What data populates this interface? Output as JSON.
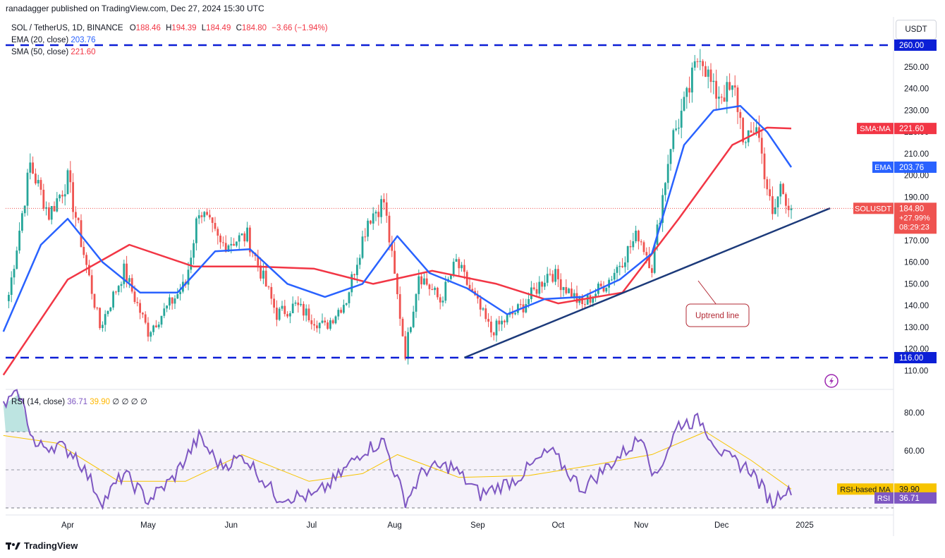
{
  "header": {
    "published": "ranadagger published on TradingView.com, Dec 27, 2024 15:30 UTC",
    "currency_button": "USDT"
  },
  "legend": {
    "symbol": "SOL / TetherUS, 1D, BINANCE",
    "ohlc": {
      "o_label": "O",
      "o": "188.46",
      "h_label": "H",
      "h": "194.39",
      "l_label": "L",
      "l": "184.49",
      "c_label": "C",
      "c": "184.80",
      "chg": "−3.66 (−1.94%)"
    },
    "ema_label": "EMA (20, close)",
    "ema_value": "203.76",
    "sma_label": "SMA (50, close)",
    "sma_value": "221.60"
  },
  "rsi_legend": {
    "label": "RSI (14, close)",
    "rsi": "36.71",
    "ma": "39.90",
    "extras": "∅ ∅ ∅ ∅"
  },
  "price_axis": {
    "ticks": [
      "250.00",
      "240.00",
      "230.00",
      "220.00",
      "210.00",
      "200.00",
      "190.00",
      "180.00",
      "170.00",
      "160.00",
      "150.00",
      "140.00",
      "130.00",
      "120.00",
      "110.00"
    ],
    "tag_260": "260.00",
    "tag_116": "116.00",
    "sma_tag": {
      "name": "SMA:MA",
      "value": "221.60"
    },
    "ema_tag": {
      "name": "EMA",
      "value": "203.76"
    },
    "last_tag": {
      "name": "SOLUSDT",
      "value": "184.80",
      "change": "+27.99%",
      "countdown": "08:29:23"
    }
  },
  "rsi_axis": {
    "ticks": [
      "80.00",
      "60.00"
    ],
    "ma_tag": {
      "name": "RSI-based MA",
      "value": "39.90"
    },
    "rsi_tag": {
      "name": "RSI",
      "value": "36.71"
    }
  },
  "time_axis": [
    "Apr",
    "May",
    "Jun",
    "Jul",
    "Aug",
    "Sep",
    "Oct",
    "Nov",
    "Dec",
    "2025"
  ],
  "annotation": {
    "uptrend": "Uptrend line"
  },
  "footer": {
    "brand": "TradingView"
  },
  "colors": {
    "up": "#26a69a",
    "down": "#ef5350",
    "ema": "#2962ff",
    "sma": "#f23645",
    "level": "#0c1fd6",
    "trend": "#1c3a7a",
    "rsi": "#7e57c2",
    "rsi_ma": "#f7c400"
  },
  "chart_data": {
    "type": "candlestick",
    "title": "SOL / TetherUS, 1D, BINANCE",
    "y_range": [
      105,
      265
    ],
    "rsi_range": [
      28,
      92
    ],
    "horizontal_levels": [
      260,
      116
    ],
    "trendline": {
      "from": {
        "date": "2024-08-27",
        "price": 116
      },
      "to": {
        "date": "2024-12-27",
        "price": 179
      }
    },
    "key_points": [
      {
        "date": "2024-03-10",
        "price": 145
      },
      {
        "date": "2024-03-18",
        "price": 205
      },
      {
        "date": "2024-03-25",
        "price": 182
      },
      {
        "date": "2024-04-01",
        "price": 198
      },
      {
        "date": "2024-04-13",
        "price": 130
      },
      {
        "date": "2024-04-22",
        "price": 156
      },
      {
        "date": "2024-05-01",
        "price": 128
      },
      {
        "date": "2024-05-15",
        "price": 150
      },
      {
        "date": "2024-05-20",
        "price": 185
      },
      {
        "date": "2024-05-28",
        "price": 168
      },
      {
        "date": "2024-06-07",
        "price": 172
      },
      {
        "date": "2024-06-18",
        "price": 136
      },
      {
        "date": "2024-06-25",
        "price": 140
      },
      {
        "date": "2024-07-06",
        "price": 130
      },
      {
        "date": "2024-07-14",
        "price": 143
      },
      {
        "date": "2024-07-22",
        "price": 180
      },
      {
        "date": "2024-07-28",
        "price": 188
      },
      {
        "date": "2024-08-05",
        "price": 118
      },
      {
        "date": "2024-08-10",
        "price": 155
      },
      {
        "date": "2024-08-18",
        "price": 142
      },
      {
        "date": "2024-08-24",
        "price": 160
      },
      {
        "date": "2024-09-06",
        "price": 128
      },
      {
        "date": "2024-09-18",
        "price": 140
      },
      {
        "date": "2024-09-28",
        "price": 156
      },
      {
        "date": "2024-10-10",
        "price": 140
      },
      {
        "date": "2024-10-20",
        "price": 152
      },
      {
        "date": "2024-10-31",
        "price": 173
      },
      {
        "date": "2024-11-05",
        "price": 158
      },
      {
        "date": "2024-11-12",
        "price": 215
      },
      {
        "date": "2024-11-18",
        "price": 235
      },
      {
        "date": "2024-11-23",
        "price": 258
      },
      {
        "date": "2024-11-28",
        "price": 238
      },
      {
        "date": "2024-12-06",
        "price": 238
      },
      {
        "date": "2024-12-10",
        "price": 213
      },
      {
        "date": "2024-12-14",
        "price": 224
      },
      {
        "date": "2024-12-20",
        "price": 180
      },
      {
        "date": "2024-12-23",
        "price": 195
      },
      {
        "date": "2024-12-27",
        "price": 184.8
      }
    ],
    "ema20": [
      {
        "date": "2024-03-08",
        "v": 128
      },
      {
        "date": "2024-03-22",
        "v": 168
      },
      {
        "date": "2024-04-01",
        "v": 180
      },
      {
        "date": "2024-04-14",
        "v": 160
      },
      {
        "date": "2024-04-28",
        "v": 146
      },
      {
        "date": "2024-05-12",
        "v": 146
      },
      {
        "date": "2024-05-26",
        "v": 165
      },
      {
        "date": "2024-06-08",
        "v": 166
      },
      {
        "date": "2024-06-22",
        "v": 150
      },
      {
        "date": "2024-07-06",
        "v": 144
      },
      {
        "date": "2024-07-20",
        "v": 150
      },
      {
        "date": "2024-08-02",
        "v": 172
      },
      {
        "date": "2024-08-14",
        "v": 155
      },
      {
        "date": "2024-08-28",
        "v": 148
      },
      {
        "date": "2024-09-12",
        "v": 136
      },
      {
        "date": "2024-09-26",
        "v": 143
      },
      {
        "date": "2024-10-10",
        "v": 144
      },
      {
        "date": "2024-10-24",
        "v": 152
      },
      {
        "date": "2024-11-05",
        "v": 164
      },
      {
        "date": "2024-11-17",
        "v": 214
      },
      {
        "date": "2024-11-28",
        "v": 230
      },
      {
        "date": "2024-12-08",
        "v": 232
      },
      {
        "date": "2024-12-18",
        "v": 220
      },
      {
        "date": "2024-12-27",
        "v": 203.76
      }
    ],
    "sma50": [
      {
        "date": "2024-03-08",
        "v": 108
      },
      {
        "date": "2024-04-01",
        "v": 152
      },
      {
        "date": "2024-04-24",
        "v": 168
      },
      {
        "date": "2024-05-18",
        "v": 158
      },
      {
        "date": "2024-06-10",
        "v": 158
      },
      {
        "date": "2024-07-02",
        "v": 157
      },
      {
        "date": "2024-07-24",
        "v": 150
      },
      {
        "date": "2024-08-15",
        "v": 156
      },
      {
        "date": "2024-09-08",
        "v": 150
      },
      {
        "date": "2024-10-01",
        "v": 141
      },
      {
        "date": "2024-10-25",
        "v": 146
      },
      {
        "date": "2024-11-15",
        "v": 180
      },
      {
        "date": "2024-12-05",
        "v": 214
      },
      {
        "date": "2024-12-18",
        "v": 222
      },
      {
        "date": "2024-12-27",
        "v": 221.6
      }
    ],
    "rsi14": [
      {
        "date": "2024-03-08",
        "v": 84
      },
      {
        "date": "2024-03-14",
        "v": 90
      },
      {
        "date": "2024-03-20",
        "v": 62
      },
      {
        "date": "2024-03-28",
        "v": 63
      },
      {
        "date": "2024-04-04",
        "v": 58
      },
      {
        "date": "2024-04-14",
        "v": 33
      },
      {
        "date": "2024-04-22",
        "v": 48
      },
      {
        "date": "2024-05-01",
        "v": 34
      },
      {
        "date": "2024-05-10",
        "v": 45
      },
      {
        "date": "2024-05-20",
        "v": 67
      },
      {
        "date": "2024-05-28",
        "v": 52
      },
      {
        "date": "2024-06-06",
        "v": 57
      },
      {
        "date": "2024-06-18",
        "v": 36
      },
      {
        "date": "2024-07-02",
        "v": 36
      },
      {
        "date": "2024-07-10",
        "v": 45
      },
      {
        "date": "2024-07-20",
        "v": 60
      },
      {
        "date": "2024-07-28",
        "v": 65
      },
      {
        "date": "2024-08-05",
        "v": 33
      },
      {
        "date": "2024-08-12",
        "v": 50
      },
      {
        "date": "2024-08-22",
        "v": 52
      },
      {
        "date": "2024-09-02",
        "v": 37
      },
      {
        "date": "2024-09-15",
        "v": 45
      },
      {
        "date": "2024-09-28",
        "v": 60
      },
      {
        "date": "2024-10-10",
        "v": 40
      },
      {
        "date": "2024-10-22",
        "v": 55
      },
      {
        "date": "2024-11-02",
        "v": 68
      },
      {
        "date": "2024-11-06",
        "v": 45
      },
      {
        "date": "2024-11-15",
        "v": 74
      },
      {
        "date": "2024-11-23",
        "v": 76
      },
      {
        "date": "2024-12-02",
        "v": 57
      },
      {
        "date": "2024-12-12",
        "v": 50
      },
      {
        "date": "2024-12-20",
        "v": 32
      },
      {
        "date": "2024-12-24",
        "v": 40
      },
      {
        "date": "2024-12-27",
        "v": 36.71
      }
    ],
    "rsi_ma": [
      {
        "date": "2024-03-08",
        "v": 68
      },
      {
        "date": "2024-03-28",
        "v": 64
      },
      {
        "date": "2024-04-20",
        "v": 44
      },
      {
        "date": "2024-05-15",
        "v": 44
      },
      {
        "date": "2024-06-05",
        "v": 58
      },
      {
        "date": "2024-06-30",
        "v": 44
      },
      {
        "date": "2024-07-20",
        "v": 48
      },
      {
        "date": "2024-08-02",
        "v": 58
      },
      {
        "date": "2024-08-25",
        "v": 46
      },
      {
        "date": "2024-09-20",
        "v": 47
      },
      {
        "date": "2024-10-12",
        "v": 52
      },
      {
        "date": "2024-11-05",
        "v": 58
      },
      {
        "date": "2024-11-25",
        "v": 70
      },
      {
        "date": "2024-12-12",
        "v": 55
      },
      {
        "date": "2024-12-27",
        "v": 39.9
      }
    ]
  }
}
